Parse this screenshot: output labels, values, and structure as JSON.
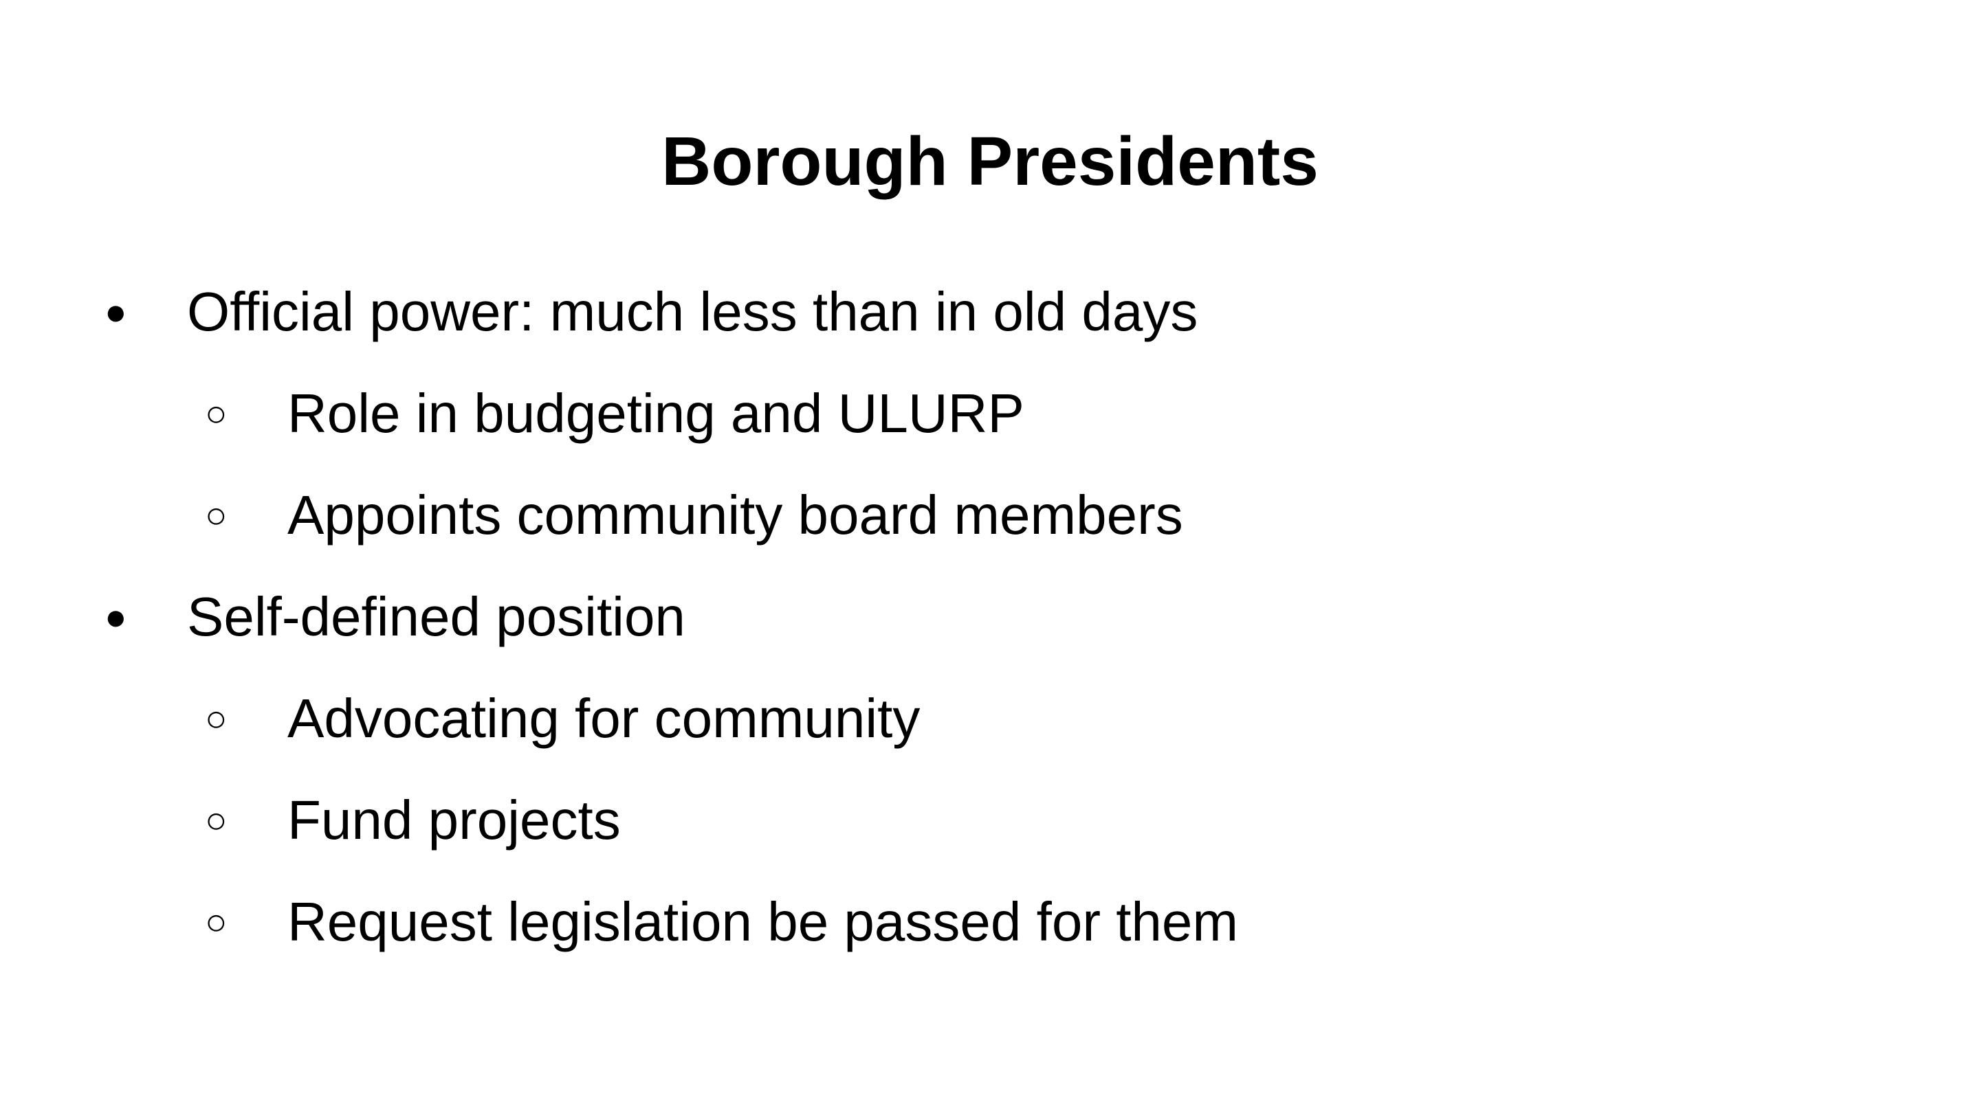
{
  "slide": {
    "title": "Borough Presidents",
    "items": [
      {
        "marker": "●",
        "text": "Official power: much less than in old days"
      },
      {
        "marker": "○",
        "text": "Role in budgeting and ULURP"
      },
      {
        "marker": "○",
        "text": "Appoints community board members"
      },
      {
        "marker": "●",
        "text": "Self-defined position"
      },
      {
        "marker": "○",
        "text": "Advocating for community"
      },
      {
        "marker": "○",
        "text": "Fund projects"
      },
      {
        "marker": "○",
        "text": "Request legislation be passed for them"
      }
    ]
  }
}
